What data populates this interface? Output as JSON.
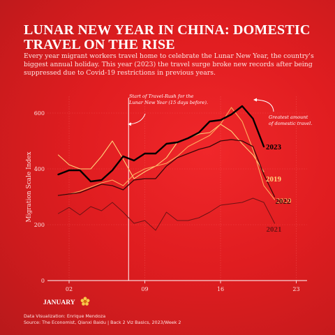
{
  "title": "LUNAR NEW YEAR IN CHINA: DOMESTIC TRAVEL ON THE RISE",
  "subtitle": "Every year migrant workers travel home to celebrate the Lunar New Year, the country's biggest annual holiday. This year (2023) the travel surge broke new records after being suppressed due to Covid-19 restrictions in previous years.",
  "annotations": {
    "travel_rush": "Start of Travel-Rush for the Lunar New Year (15 days before).",
    "greatest": "Greatest amount of domestic travel."
  },
  "month_label": "JANUARY",
  "footer": {
    "credit": "Data Visualization: Enrique Mendoza",
    "source": "Source: The Economist, Qianxi Baidu | Back 2 Viz Basics, 2023/Week 2"
  },
  "colors": {
    "background": "#e01d20",
    "y2023": "#000000",
    "y2022": "#3a0607",
    "y2021": "#6e1214",
    "y2020": "#ffab5f",
    "y2019": "#ffd07a",
    "flower": "#f7c948"
  },
  "chart_data": {
    "type": "line",
    "title": "LUNAR NEW YEAR IN CHINA: DOMESTIC TRAVEL ON THE RISE",
    "xlabel": "January",
    "ylabel": "Migration Scale Index",
    "x_ticks": [
      "02",
      "09",
      "16",
      "23"
    ],
    "y_ticks": [
      0,
      200,
      400,
      600
    ],
    "xlim": [
      0,
      24
    ],
    "ylim": [
      0,
      660
    ],
    "x": [
      1,
      2,
      3,
      4,
      5,
      6,
      7,
      8,
      9,
      10,
      11,
      12,
      13,
      14,
      15,
      16,
      17,
      18,
      19,
      20,
      21
    ],
    "vertical_marker": {
      "x": 7.5
    },
    "series": [
      {
        "name": "2023",
        "values": [
          380,
          395,
          395,
          355,
          360,
          395,
          445,
          430,
          455,
          455,
          490,
          495,
          510,
          530,
          570,
          575,
          595,
          625,
          580,
          480,
          null
        ]
      },
      {
        "name": "2019",
        "values": [
          450,
          415,
          400,
          400,
          445,
          500,
          435,
          365,
          390,
          410,
          440,
          495,
          510,
          525,
          530,
          560,
          535,
          490,
          450,
          390,
          null
        ]
      },
      {
        "name": "2022",
        "values": [
          305,
          310,
          315,
          330,
          345,
          340,
          325,
          360,
          365,
          365,
          410,
          440,
          455,
          470,
          480,
          500,
          505,
          500,
          480,
          380,
          300
        ]
      },
      {
        "name": "2020",
        "values": [
          305,
          310,
          320,
          335,
          350,
          360,
          340,
          380,
          400,
          410,
          420,
          445,
          480,
          500,
          520,
          560,
          620,
          570,
          470,
          340,
          290
        ]
      },
      {
        "name": "2021",
        "values": [
          240,
          262,
          235,
          265,
          250,
          280,
          245,
          205,
          215,
          180,
          245,
          215,
          215,
          225,
          245,
          270,
          275,
          280,
          295,
          280,
          205
        ]
      }
    ]
  }
}
